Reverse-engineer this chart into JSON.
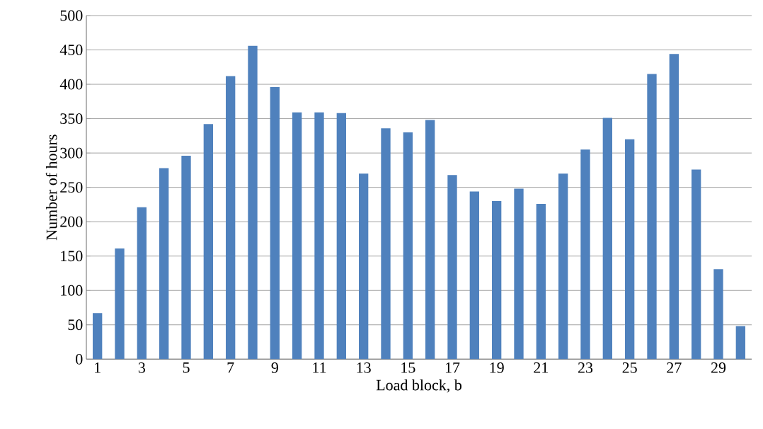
{
  "chart_data": {
    "type": "bar",
    "xlabel": "Load block, b",
    "ylabel": "Number of hours",
    "categories": [
      "1",
      null,
      "3",
      null,
      "5",
      null,
      "7",
      null,
      "9",
      null,
      "11",
      null,
      "13",
      null,
      "15",
      null,
      "17",
      null,
      "19",
      null,
      "21",
      null,
      "23",
      null,
      "25",
      null,
      "27",
      null,
      "29",
      null
    ],
    "values": [
      67,
      161,
      221,
      278,
      296,
      342,
      412,
      456,
      396,
      359,
      359,
      358,
      270,
      336,
      330,
      348,
      268,
      244,
      230,
      248,
      226,
      270,
      305,
      351,
      320,
      415,
      444,
      276,
      131,
      48
    ],
    "color": "#4f81bd",
    "ylim": [
      0,
      500
    ],
    "yticks": [
      0,
      50,
      100,
      150,
      200,
      250,
      300,
      350,
      400,
      450,
      500
    ],
    "grid": "y"
  }
}
